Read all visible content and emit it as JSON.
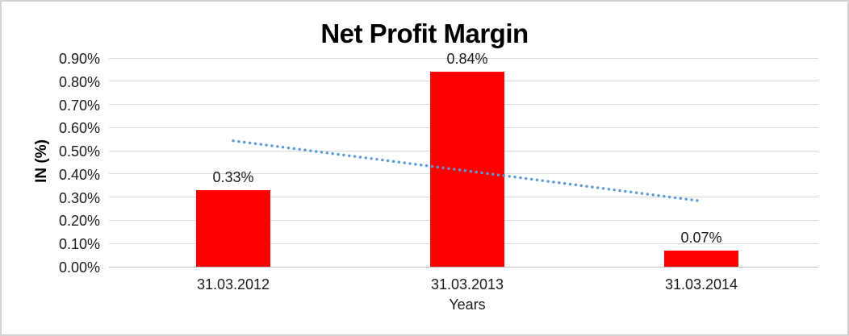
{
  "chart_data": {
    "type": "bar",
    "title": "Net Profit Margin",
    "xlabel": "Years",
    "ylabel": "IN (%)",
    "categories": [
      "31.03.2012",
      "31.03.2013",
      "31.03.2014"
    ],
    "values": [
      0.33,
      0.84,
      0.07
    ],
    "data_labels": [
      "0.33%",
      "0.84%",
      "0.07%"
    ],
    "unit": "percent",
    "ylim": [
      0,
      0.9
    ],
    "ytick_labels": [
      "0.00%",
      "0.10%",
      "0.20%",
      "0.30%",
      "0.40%",
      "0.50%",
      "0.60%",
      "0.70%",
      "0.80%",
      "0.90%"
    ],
    "grid": true,
    "legend": "none",
    "bar_color": "#FF0000",
    "trendline": {
      "type": "linear",
      "style": "dotted",
      "color": "#5B9BD5",
      "start_value": 0.543,
      "end_value": 0.283
    }
  }
}
